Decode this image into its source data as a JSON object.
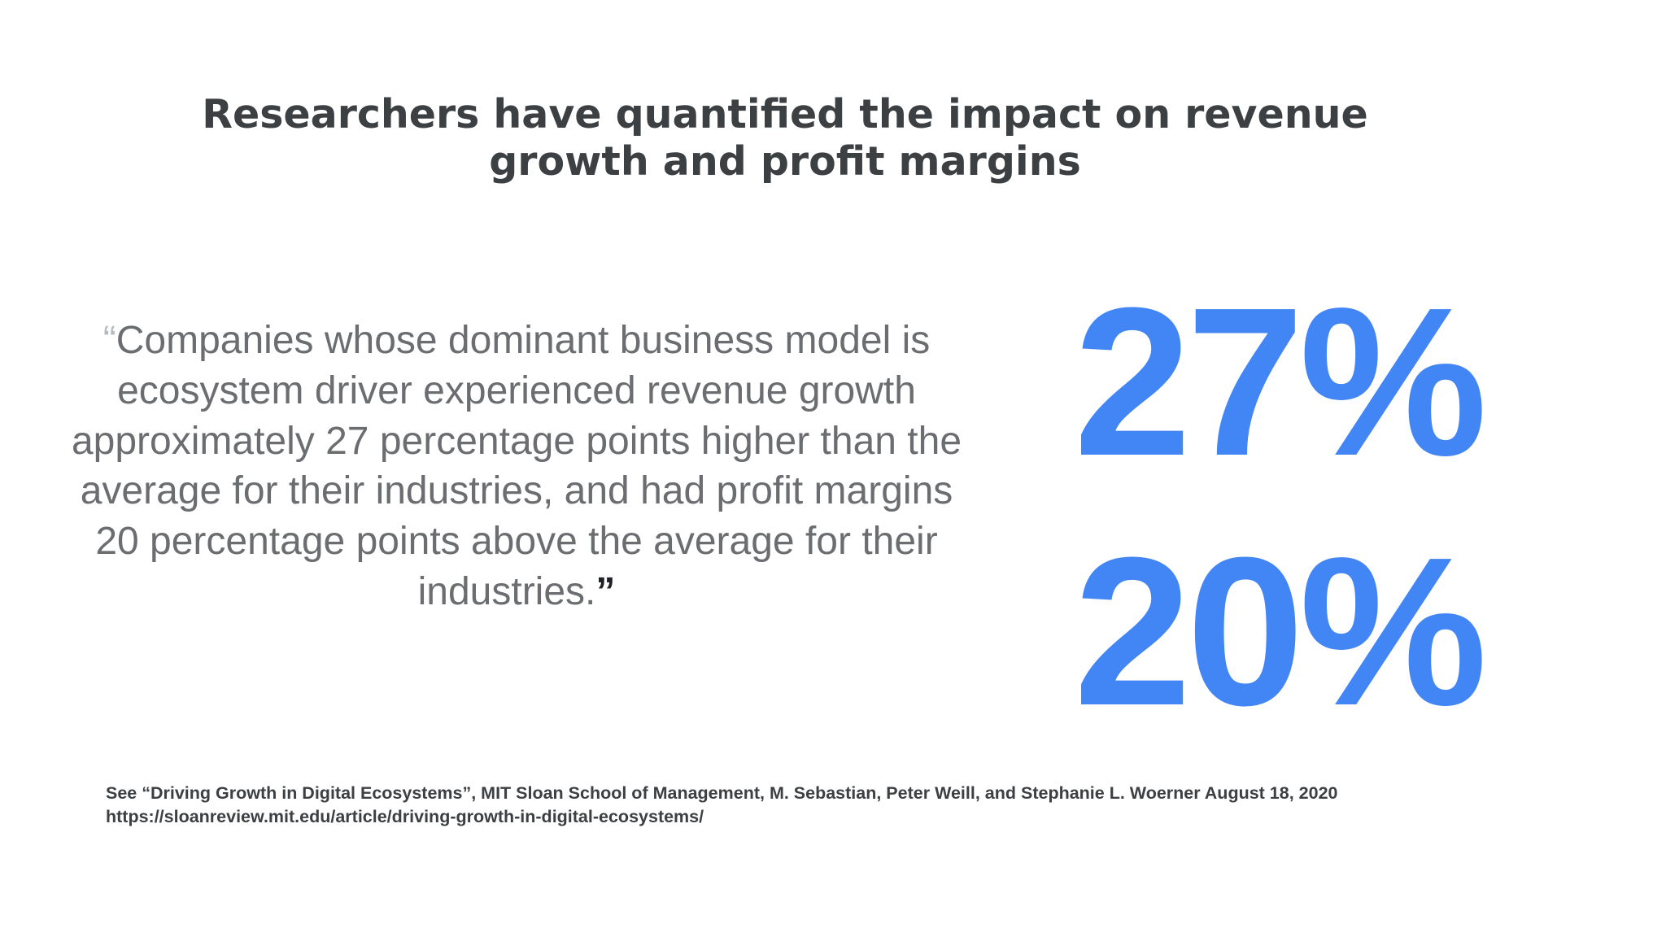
{
  "slide": {
    "title": "Researchers have quantified the impact on revenue growth and profit margins",
    "quote": {
      "open_mark": "“",
      "text": "Companies whose dominant business model is ecosystem driver experienced revenue growth approximately 27 percentage points higher than the average for their industries, and had profit margins 20 percentage points above the average for their industries.",
      "close_mark": "”"
    },
    "stats": [
      {
        "value": "27%"
      },
      {
        "value": "20%"
      }
    ],
    "citation": {
      "line1": "See “Driving Growth in Digital Ecosystems”, MIT Sloan School of Management, M. Sebastian, Peter Weill, and Stephanie L. Woerner August 18, 2020",
      "line2": "https://sloanreview.mit.edu/article/driving-growth-in-digital-ecosystems/"
    },
    "colors": {
      "accent": "#4285f4",
      "title": "#3c4043",
      "quote_text": "#6b6d70"
    }
  }
}
